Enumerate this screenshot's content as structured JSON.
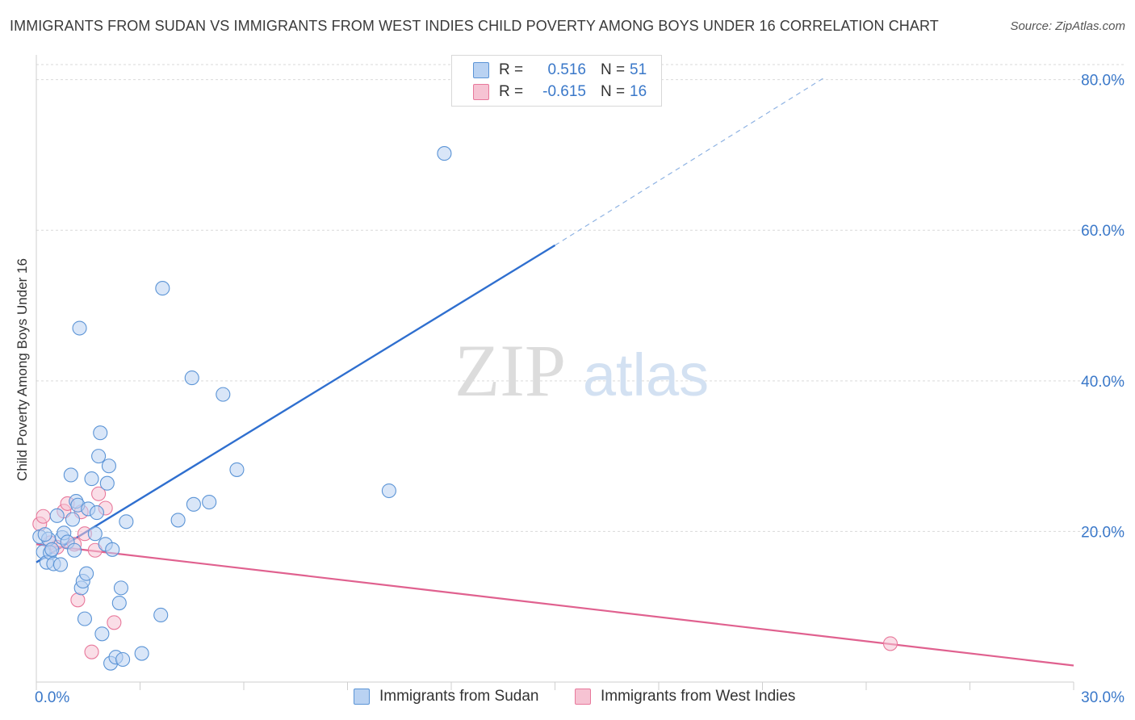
{
  "title": "IMMIGRANTS FROM SUDAN VS IMMIGRANTS FROM WEST INDIES CHILD POVERTY AMONG BOYS UNDER 16 CORRELATION CHART",
  "source": "Source: ZipAtlas.com",
  "watermark": {
    "zip": "ZIP",
    "atlas": "atlas"
  },
  "legend_top": {
    "rows": [
      {
        "r_label": "R =",
        "r_value": "0.516",
        "n_label": "N =",
        "n_value": "51"
      },
      {
        "r_label": "R =",
        "r_value": "-0.615",
        "n_label": "N =",
        "n_value": "16"
      }
    ]
  },
  "chart_data": {
    "type": "scatter",
    "title": "IMMIGRANTS FROM SUDAN VS IMMIGRANTS FROM WEST INDIES CHILD POVERTY AMONG BOYS UNDER 16 CORRELATION CHART",
    "xlabel": "",
    "ylabel": "Child Poverty Among Boys Under 16",
    "xlim": [
      0,
      30
    ],
    "ylim": [
      0,
      82
    ],
    "x_tick_labels": [
      "0.0%",
      "30.0%"
    ],
    "y_ticks": [
      20,
      40,
      60,
      80
    ],
    "y_tick_labels": [
      "20.0%",
      "40.0%",
      "60.0%",
      "80.0%"
    ],
    "grid": true,
    "series": [
      {
        "name": "Immigrants from Sudan",
        "color": "#5b94d6",
        "fill": "#b9d2f2",
        "points": [
          [
            0.1,
            19.3
          ],
          [
            0.2,
            17.3
          ],
          [
            0.3,
            15.9
          ],
          [
            0.35,
            19.0
          ],
          [
            0.4,
            17.2
          ],
          [
            0.5,
            15.7
          ],
          [
            0.6,
            22.1
          ],
          [
            0.7,
            15.6
          ],
          [
            0.75,
            19.2
          ],
          [
            0.8,
            19.8
          ],
          [
            0.9,
            18.6
          ],
          [
            1.0,
            27.5
          ],
          [
            1.05,
            21.6
          ],
          [
            1.1,
            17.5
          ],
          [
            1.15,
            24.0
          ],
          [
            1.2,
            23.5
          ],
          [
            1.3,
            12.5
          ],
          [
            1.35,
            13.4
          ],
          [
            1.4,
            8.4
          ],
          [
            1.45,
            14.4
          ],
          [
            1.5,
            23.0
          ],
          [
            1.6,
            27.0
          ],
          [
            1.7,
            19.7
          ],
          [
            1.75,
            22.5
          ],
          [
            1.8,
            30.0
          ],
          [
            1.85,
            33.1
          ],
          [
            1.9,
            6.4
          ],
          [
            2.0,
            18.3
          ],
          [
            2.05,
            26.4
          ],
          [
            2.1,
            28.7
          ],
          [
            2.15,
            2.5
          ],
          [
            2.2,
            17.6
          ],
          [
            2.3,
            3.3
          ],
          [
            2.4,
            10.5
          ],
          [
            2.45,
            12.5
          ],
          [
            2.5,
            3.0
          ],
          [
            2.6,
            21.3
          ],
          [
            3.05,
            3.8
          ],
          [
            3.6,
            8.9
          ],
          [
            3.65,
            52.3
          ],
          [
            4.1,
            21.5
          ],
          [
            4.5,
            40.4
          ],
          [
            4.55,
            23.6
          ],
          [
            5.0,
            23.9
          ],
          [
            5.4,
            38.2
          ],
          [
            5.8,
            28.2
          ],
          [
            10.2,
            25.4
          ],
          [
            11.8,
            70.2
          ],
          [
            1.25,
            47.0
          ],
          [
            0.45,
            17.6
          ],
          [
            0.25,
            19.6
          ]
        ]
      },
      {
        "name": "Immigrants from West Indies",
        "color": "#e8789b",
        "fill": "#f6c3d3",
        "points": [
          [
            0.1,
            21.0
          ],
          [
            0.2,
            22.0
          ],
          [
            0.4,
            18.5
          ],
          [
            0.6,
            17.9
          ],
          [
            0.8,
            22.7
          ],
          [
            0.9,
            23.7
          ],
          [
            1.1,
            18.3
          ],
          [
            1.2,
            10.9
          ],
          [
            1.3,
            22.6
          ],
          [
            1.4,
            19.7
          ],
          [
            1.6,
            4.0
          ],
          [
            1.7,
            17.5
          ],
          [
            1.8,
            25.0
          ],
          [
            2.0,
            23.1
          ],
          [
            2.25,
            7.9
          ],
          [
            24.7,
            5.1
          ]
        ]
      }
    ],
    "trend_lines": [
      {
        "series": "Immigrants from Sudan",
        "color": "#2f6fcf",
        "x_start": 0.0,
        "y_start": 15.9,
        "x_solid_end": 15.0,
        "y_solid_end": 58.0,
        "x_dash_end": 22.8,
        "y_dash_end": 80.3
      },
      {
        "series": "Immigrants from West Indies",
        "color": "#e0618f",
        "x_start": 0.0,
        "y_start": 18.3,
        "x_end": 30.0,
        "y_end": 2.2
      }
    ]
  },
  "bottom_legend": [
    {
      "label": "Immigrants from Sudan"
    },
    {
      "label": "Immigrants from West Indies"
    }
  ]
}
